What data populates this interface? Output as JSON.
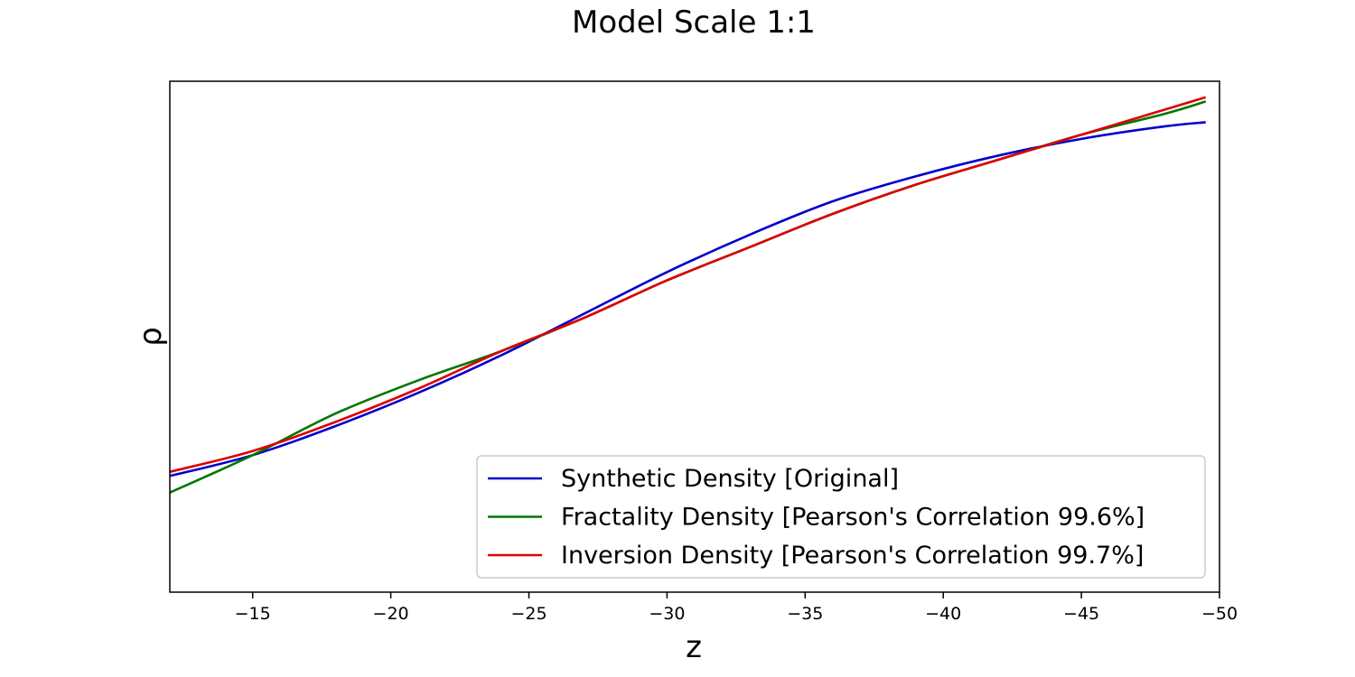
{
  "chart_data": {
    "type": "line",
    "title": "Model Scale 1:1",
    "xlabel": "z",
    "ylabel": "ρ",
    "xlim": [
      -12,
      -50
    ],
    "ylim": [
      0.0,
      1.0
    ],
    "x_inverted": true,
    "y_ticks_shown": false,
    "xticks": [
      -15,
      -20,
      -25,
      -30,
      -35,
      -40,
      -45,
      -50
    ],
    "xtick_labels": [
      "−15",
      "−20",
      "−25",
      "−30",
      "−35",
      "−40",
      "−45",
      "−50"
    ],
    "grid": false,
    "legend_position": "lower-right",
    "series": [
      {
        "name": "Synthetic Density [Original]",
        "color": "#0000cc",
        "x": [
          -12,
          -15,
          -18,
          -21,
          -24,
          -27,
          -30,
          -33,
          -36,
          -39,
          -42,
          -45,
          -48,
          -49.5
        ],
        "y": [
          0.11,
          0.16,
          0.23,
          0.31,
          0.4,
          0.5,
          0.6,
          0.69,
          0.77,
          0.83,
          0.88,
          0.92,
          0.95,
          0.96
        ]
      },
      {
        "name": "Fractality Density [Pearson's Correlation 99.6%]",
        "color": "#007700",
        "x": [
          -12,
          -15,
          -18,
          -21,
          -24,
          -27,
          -30,
          -33,
          -36,
          -39,
          -42,
          -45,
          -48,
          -49.5
        ],
        "y": [
          0.07,
          0.16,
          0.26,
          0.34,
          0.41,
          0.49,
          0.58,
          0.66,
          0.74,
          0.81,
          0.87,
          0.93,
          0.98,
          1.01
        ]
      },
      {
        "name": "Inversion Density [Pearson's Correlation 99.7%]",
        "color": "#dd0000",
        "x": [
          -12,
          -15,
          -18,
          -21,
          -24,
          -27,
          -30,
          -33,
          -36,
          -39,
          -42,
          -45,
          -48,
          -49.5
        ],
        "y": [
          0.12,
          0.17,
          0.24,
          0.32,
          0.41,
          0.49,
          0.58,
          0.66,
          0.74,
          0.81,
          0.87,
          0.93,
          0.99,
          1.02
        ]
      }
    ]
  }
}
